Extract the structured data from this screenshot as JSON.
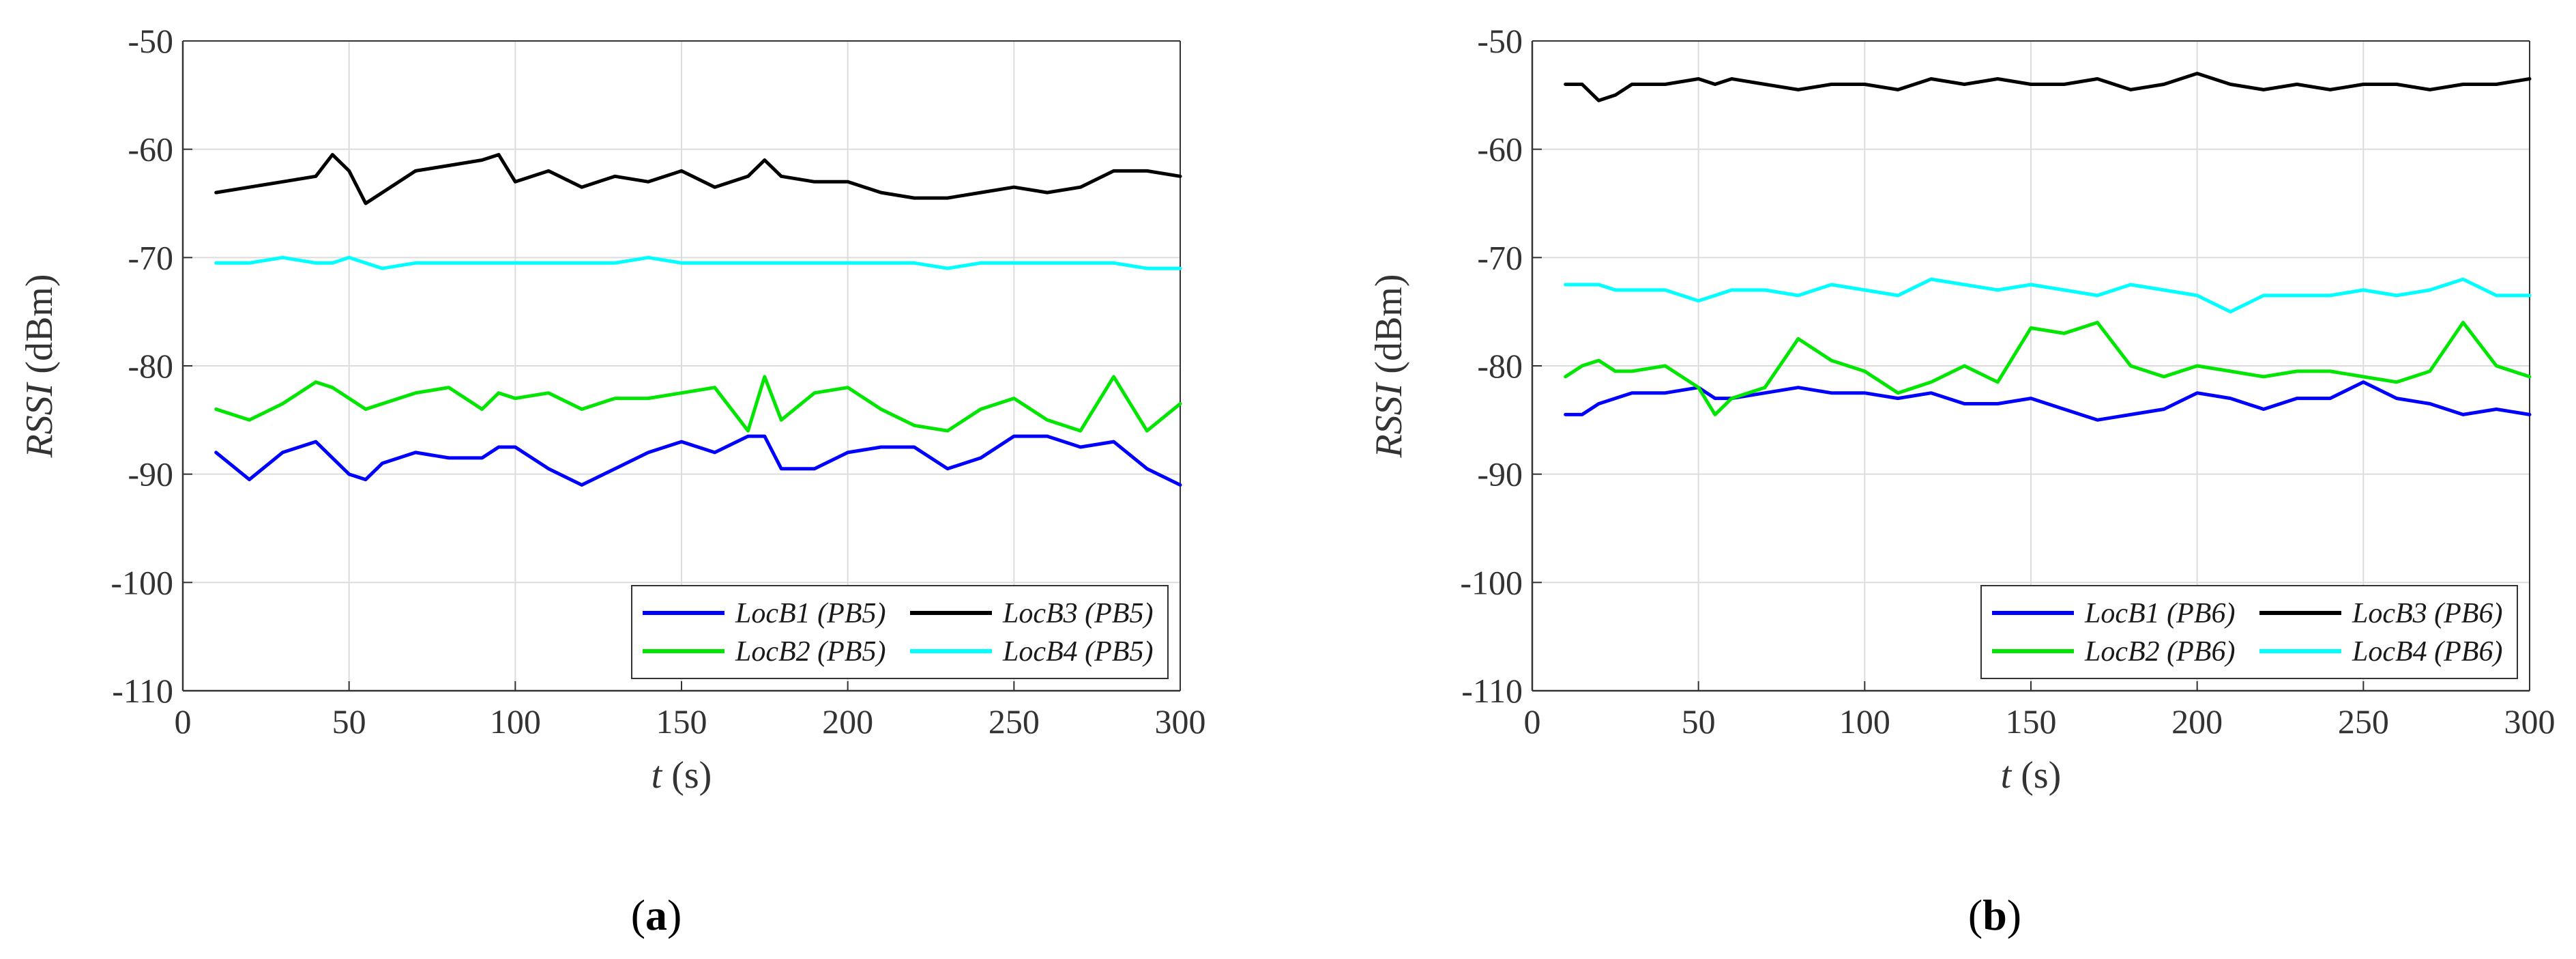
{
  "chart_data": [
    {
      "type": "line",
      "panel_label": "a",
      "xlabel_var": "t",
      "xlabel_unit": "(s)",
      "ylabel_var": "RSSI",
      "ylabel_unit": "(dBm)",
      "xlim": [
        0,
        300
      ],
      "ylim": [
        -110,
        -50
      ],
      "xticks": [
        0,
        50,
        100,
        150,
        200,
        250,
        300
      ],
      "yticks": [
        -50,
        -60,
        -70,
        -80,
        -90,
        -100,
        -110
      ],
      "grid": true,
      "legend_position": "bottom-right",
      "x": [
        10,
        20,
        30,
        40,
        45,
        50,
        55,
        60,
        70,
        80,
        90,
        95,
        100,
        110,
        120,
        130,
        140,
        150,
        160,
        170,
        175,
        180,
        190,
        200,
        210,
        220,
        230,
        240,
        250,
        260,
        270,
        280,
        290,
        300
      ],
      "series": [
        {
          "name": "LocB1",
          "tag": "(PB5)",
          "color": "#0000ff",
          "values": [
            -88,
            -90.5,
            -88,
            -87,
            -88.5,
            -90,
            -90.5,
            -89,
            -88,
            -88.5,
            -88.5,
            -87.5,
            -87.5,
            -89.5,
            -91,
            -89.5,
            -88,
            -87,
            -88,
            -86.5,
            -86.5,
            -89.5,
            -89.5,
            -88,
            -87.5,
            -87.5,
            -89.5,
            -88.5,
            -86.5,
            -86.5,
            -87.5,
            -87,
            -89.5,
            -91
          ]
        },
        {
          "name": "LocB2",
          "tag": "(PB5)",
          "color": "#00e600",
          "values": [
            -84,
            -85,
            -83.5,
            -81.5,
            -82,
            -83,
            -84,
            -83.5,
            -82.5,
            -82,
            -84,
            -82.5,
            -83,
            -82.5,
            -84,
            -83,
            -83,
            -82.5,
            -82,
            -86,
            -81,
            -85,
            -82.5,
            -82,
            -84,
            -85.5,
            -86,
            -84,
            -83,
            -85,
            -86,
            -81,
            -86,
            -83.5
          ]
        },
        {
          "name": "LocB3",
          "tag": "(PB5)",
          "color": "#000000",
          "values": [
            -64,
            -63.5,
            -63,
            -62.5,
            -60.5,
            -62,
            -65,
            -64,
            -62,
            -61.5,
            -61,
            -60.5,
            -63,
            -62,
            -63.5,
            -62.5,
            -63,
            -62,
            -63.5,
            -62.5,
            -61,
            -62.5,
            -63,
            -63,
            -64,
            -64.5,
            -64.5,
            -64,
            -63.5,
            -64,
            -63.5,
            -62,
            -62,
            -62.5
          ]
        },
        {
          "name": "LocB4",
          "tag": "(PB5)",
          "color": "#00ffff",
          "values": [
            -70.5,
            -70.5,
            -70,
            -70.5,
            -70.5,
            -70,
            -70.5,
            -71,
            -70.5,
            -70.5,
            -70.5,
            -70.5,
            -70.5,
            -70.5,
            -70.5,
            -70.5,
            -70,
            -70.5,
            -70.5,
            -70.5,
            -70.5,
            -70.5,
            -70.5,
            -70.5,
            -70.5,
            -70.5,
            -71,
            -70.5,
            -70.5,
            -70.5,
            -70.5,
            -70.5,
            -71,
            -71
          ]
        }
      ]
    },
    {
      "type": "line",
      "panel_label": "b",
      "xlabel_var": "t",
      "xlabel_unit": "(s)",
      "ylabel_var": "RSSI",
      "ylabel_unit": "(dBm)",
      "xlim": [
        0,
        300
      ],
      "ylim": [
        -110,
        -50
      ],
      "xticks": [
        0,
        50,
        100,
        150,
        200,
        250,
        300
      ],
      "yticks": [
        -50,
        -60,
        -70,
        -80,
        -90,
        -100,
        -110
      ],
      "grid": true,
      "legend_position": "bottom-right",
      "x": [
        10,
        15,
        20,
        25,
        30,
        40,
        50,
        55,
        60,
        70,
        80,
        90,
        100,
        110,
        120,
        130,
        140,
        150,
        160,
        170,
        180,
        190,
        200,
        210,
        220,
        230,
        240,
        250,
        260,
        270,
        280,
        290,
        300
      ],
      "series": [
        {
          "name": "LocB1",
          "tag": "(PB6)",
          "color": "#0000ff",
          "values": [
            -84.5,
            -84.5,
            -83.5,
            -83,
            -82.5,
            -82.5,
            -82,
            -83,
            -83,
            -82.5,
            -82,
            -82.5,
            -82.5,
            -83,
            -82.5,
            -83.5,
            -83.5,
            -83,
            -84,
            -85,
            -84.5,
            -84,
            -82.5,
            -83,
            -84,
            -83,
            -83,
            -81.5,
            -83,
            -83.5,
            -84.5,
            -84,
            -84.5
          ]
        },
        {
          "name": "LocB2",
          "tag": "(PB6)",
          "color": "#00e600",
          "values": [
            -81,
            -80,
            -79.5,
            -80.5,
            -80.5,
            -80,
            -82,
            -84.5,
            -83,
            -82,
            -77.5,
            -79.5,
            -80.5,
            -82.5,
            -81.5,
            -80,
            -81.5,
            -76.5,
            -77,
            -76,
            -80,
            -81,
            -80,
            -80.5,
            -81,
            -80.5,
            -80.5,
            -81,
            -81.5,
            -80.5,
            -76,
            -80,
            -81
          ]
        },
        {
          "name": "LocB3",
          "tag": "(PB6)",
          "color": "#000000",
          "values": [
            -54,
            -54,
            -55.5,
            -55,
            -54,
            -54,
            -53.5,
            -54,
            -53.5,
            -54,
            -54.5,
            -54,
            -54,
            -54.5,
            -53.5,
            -54,
            -53.5,
            -54,
            -54,
            -53.5,
            -54.5,
            -54,
            -53,
            -54,
            -54.5,
            -54,
            -54.5,
            -54,
            -54,
            -54.5,
            -54,
            -54,
            -53.5
          ]
        },
        {
          "name": "LocB4",
          "tag": "(PB6)",
          "color": "#00ffff",
          "values": [
            -72.5,
            -72.5,
            -72.5,
            -73,
            -73,
            -73,
            -74,
            -73.5,
            -73,
            -73,
            -73.5,
            -72.5,
            -73,
            -73.5,
            -72,
            -72.5,
            -73,
            -72.5,
            -73,
            -73.5,
            -72.5,
            -73,
            -73.5,
            -75,
            -73.5,
            -73.5,
            -73.5,
            -73,
            -73.5,
            -73,
            -72,
            -73.5,
            -73.5
          ]
        }
      ]
    }
  ]
}
